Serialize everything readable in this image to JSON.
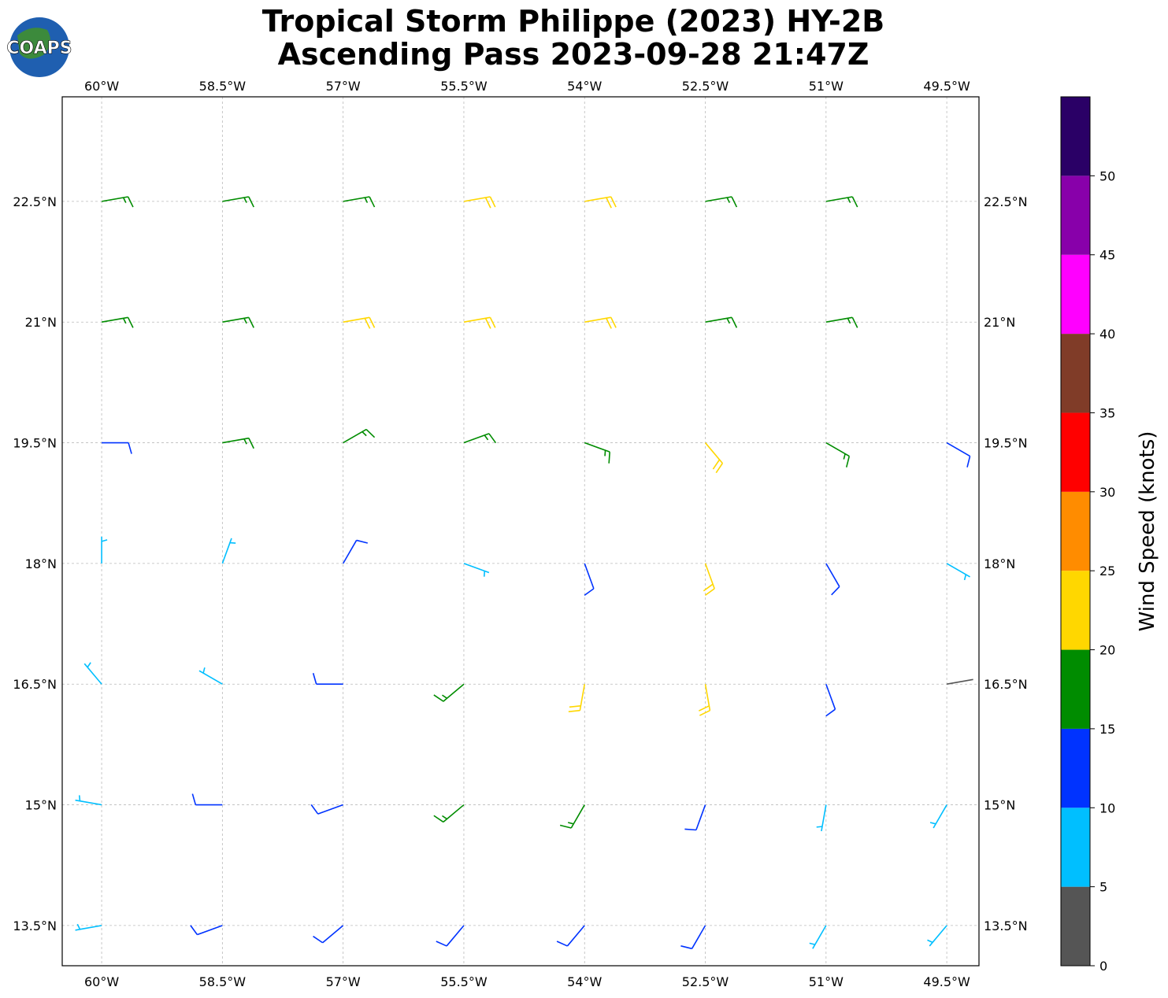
{
  "chart_data": {
    "type": "barbs",
    "title": "Tropical Storm Philippe (2023) HY-2B",
    "subtitle": "Ascending Pass 2023-09-28 21:47Z",
    "logo": "COAPS",
    "colorbar_label": "Wind Speed (knots)",
    "xlim": [
      -60.49,
      -49.1
    ],
    "ylim": [
      13.0,
      23.8
    ],
    "xticks": [
      {
        "value": -60,
        "label": "60°W"
      },
      {
        "value": -58.5,
        "label": "58.5°W"
      },
      {
        "value": -57,
        "label": "57°W"
      },
      {
        "value": -55.5,
        "label": "55.5°W"
      },
      {
        "value": -54,
        "label": "54°W"
      },
      {
        "value": -52.5,
        "label": "52.5°W"
      },
      {
        "value": -51,
        "label": "51°W"
      },
      {
        "value": -49.5,
        "label": "49.5°W"
      }
    ],
    "yticks": [
      {
        "value": 13.5,
        "label": "13.5°N"
      },
      {
        "value": 15,
        "label": "15°N"
      },
      {
        "value": 16.5,
        "label": "16.5°N"
      },
      {
        "value": 18,
        "label": "18°N"
      },
      {
        "value": 19.5,
        "label": "19.5°N"
      },
      {
        "value": 21,
        "label": "21°N"
      },
      {
        "value": 22.5,
        "label": "22.5°N"
      }
    ],
    "grid": true,
    "colorbar": {
      "bounds": [
        0,
        5,
        10,
        15,
        20,
        25,
        30,
        35,
        40,
        45,
        50,
        55
      ],
      "ticks": [
        0,
        5,
        10,
        15,
        20,
        25,
        30,
        35,
        40,
        45,
        50
      ],
      "colors": [
        "#555555",
        "#00bfff",
        "#0033ff",
        "#008c00",
        "#ffd700",
        "#ff8c00",
        "#ff0000",
        "#803c28",
        "#ff00ff",
        "#8800aa",
        "#2a0066"
      ]
    },
    "barbs": {
      "lon": [
        -60,
        -58.5,
        -57,
        -55.5,
        -54,
        -52.5,
        -51,
        -49.5
      ],
      "lat": [
        13.5,
        15,
        16.5,
        18,
        19.5,
        21,
        22.5
      ],
      "speed": [
        [
          8,
          11,
          13,
          14,
          12,
          11,
          8,
          8
        ],
        [
          8,
          10,
          13,
          17,
          15,
          13,
          9,
          7
        ],
        [
          7,
          8,
          12,
          16,
          20,
          24,
          13,
          4
        ],
        [
          8,
          7,
          12,
          8,
          13,
          22,
          13,
          9
        ],
        [
          13,
          17,
          17,
          18,
          17,
          22,
          17,
          13
        ],
        [
          17,
          18,
          22,
          22,
          21,
          19,
          17,
          null
        ],
        [
          17,
          17,
          18,
          22,
          22,
          18,
          17,
          null
        ]
      ],
      "direction": [
        [
          260,
          250,
          230,
          220,
          220,
          210,
          210,
          220
        ],
        [
          280,
          270,
          250,
          230,
          210,
          200,
          190,
          210
        ],
        [
          320,
          300,
          270,
          230,
          190,
          170,
          160,
          80
        ],
        [
          0,
          20,
          30,
          110,
          160,
          160,
          150,
          120
        ],
        [
          90,
          80,
          60,
          70,
          110,
          140,
          120,
          120
        ],
        [
          80,
          80,
          80,
          80,
          80,
          80,
          80,
          null
        ],
        [
          80,
          80,
          80,
          80,
          80,
          80,
          80,
          null
        ]
      ]
    }
  }
}
